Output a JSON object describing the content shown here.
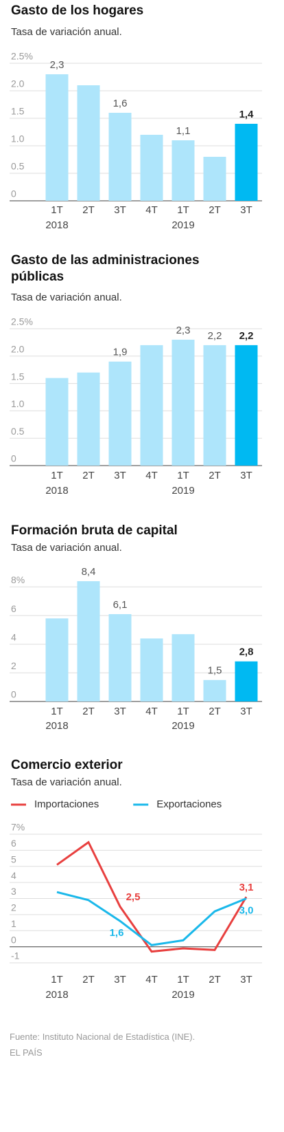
{
  "chart_data": [
    {
      "type": "bar",
      "title": "Gasto de los hogares",
      "subtitle": "Tasa de variación anual.",
      "categories": [
        "1T",
        "2T",
        "3T",
        "4T",
        "1T",
        "2T",
        "3T"
      ],
      "year_labels": [
        "2018",
        null,
        null,
        null,
        "2019",
        null,
        null
      ],
      "values": [
        2.3,
        2.1,
        1.6,
        1.2,
        1.1,
        0.8,
        1.4
      ],
      "value_labels": [
        "2,3",
        null,
        "1,6",
        null,
        "1,1",
        null,
        "1,4"
      ],
      "color": "#aee5fb",
      "highlight": 6,
      "highlight_color": "#00b9f2",
      "ylim": [
        0,
        2.5
      ],
      "yticks": [
        0,
        0.5,
        {
          "value": 1,
          "label": "1.0"
        },
        1.5,
        {
          "value": 2,
          "label": "2.0"
        },
        {
          "value": 2.5,
          "label": "2.5%"
        }
      ],
      "grid": true
    },
    {
      "type": "bar",
      "title": "Gasto de las administraciones públicas",
      "subtitle": "Tasa de variación anual.",
      "categories": [
        "1T",
        "2T",
        "3T",
        "4T",
        "1T",
        "2T",
        "3T"
      ],
      "year_labels": [
        "2018",
        null,
        null,
        null,
        "2019",
        null,
        null
      ],
      "values": [
        1.6,
        1.7,
        1.9,
        2.2,
        2.3,
        2.2,
        2.2
      ],
      "value_labels": [
        null,
        null,
        "1,9",
        null,
        "2,3",
        "2,2",
        "2,2"
      ],
      "color": "#aee5fb",
      "highlight": 6,
      "highlight_color": "#00b9f2",
      "ylim": [
        0,
        2.5
      ],
      "yticks": [
        0,
        0.5,
        {
          "value": 1,
          "label": "1.0"
        },
        1.5,
        {
          "value": 2,
          "label": "2.0"
        },
        {
          "value": 2.5,
          "label": "2.5%"
        }
      ],
      "grid": true
    },
    {
      "type": "bar",
      "title": "Formación bruta de capital",
      "subtitle": "Tasa de variación anual.",
      "categories": [
        "1T",
        "2T",
        "3T",
        "4T",
        "1T",
        "2T",
        "3T"
      ],
      "year_labels": [
        "2018",
        null,
        null,
        null,
        "2019",
        null,
        null
      ],
      "values": [
        5.8,
        8.4,
        6.1,
        4.4,
        4.7,
        1.5,
        2.8
      ],
      "value_labels": [
        null,
        "8,4",
        "6,1",
        null,
        null,
        "1,5",
        "2,8"
      ],
      "color": "#aee5fb",
      "highlight": 6,
      "highlight_color": "#00b9f2",
      "ylim": [
        0,
        8.5
      ],
      "yticks": [
        0,
        2,
        4,
        6,
        {
          "value": 8,
          "label": "8%"
        }
      ],
      "grid": true
    },
    {
      "type": "line",
      "title": "Comercio exterior",
      "subtitle": "Tasa de variación anual.",
      "categories": [
        "1T",
        "2T",
        "3T",
        "4T",
        "1T",
        "2T",
        "3T"
      ],
      "year_labels": [
        "2018",
        null,
        null,
        null,
        "2019",
        null,
        null
      ],
      "series": [
        {
          "name": "Importaciones",
          "color": "#e8403f",
          "values": [
            5.1,
            6.5,
            2.5,
            -0.3,
            -0.1,
            -0.2,
            3.1
          ],
          "value_labels": [
            null,
            null,
            "2,5",
            null,
            null,
            null,
            "3,1"
          ]
        },
        {
          "name": "Exportaciones",
          "color": "#1ab8ea",
          "values": [
            3.4,
            2.9,
            1.6,
            0.1,
            0.4,
            2.2,
            3.0
          ],
          "value_labels": [
            null,
            null,
            "1,6",
            null,
            null,
            null,
            "3,0"
          ]
        }
      ],
      "ylim": [
        -1,
        7
      ],
      "yticks": [
        -1,
        0,
        1,
        2,
        3,
        4,
        5,
        6,
        {
          "value": 7,
          "label": "7%"
        }
      ],
      "grid": true,
      "legend": "top"
    }
  ],
  "source": "Fuente: Instituto Nacional de Estadística (INE).",
  "credit": "EL PAÍS"
}
